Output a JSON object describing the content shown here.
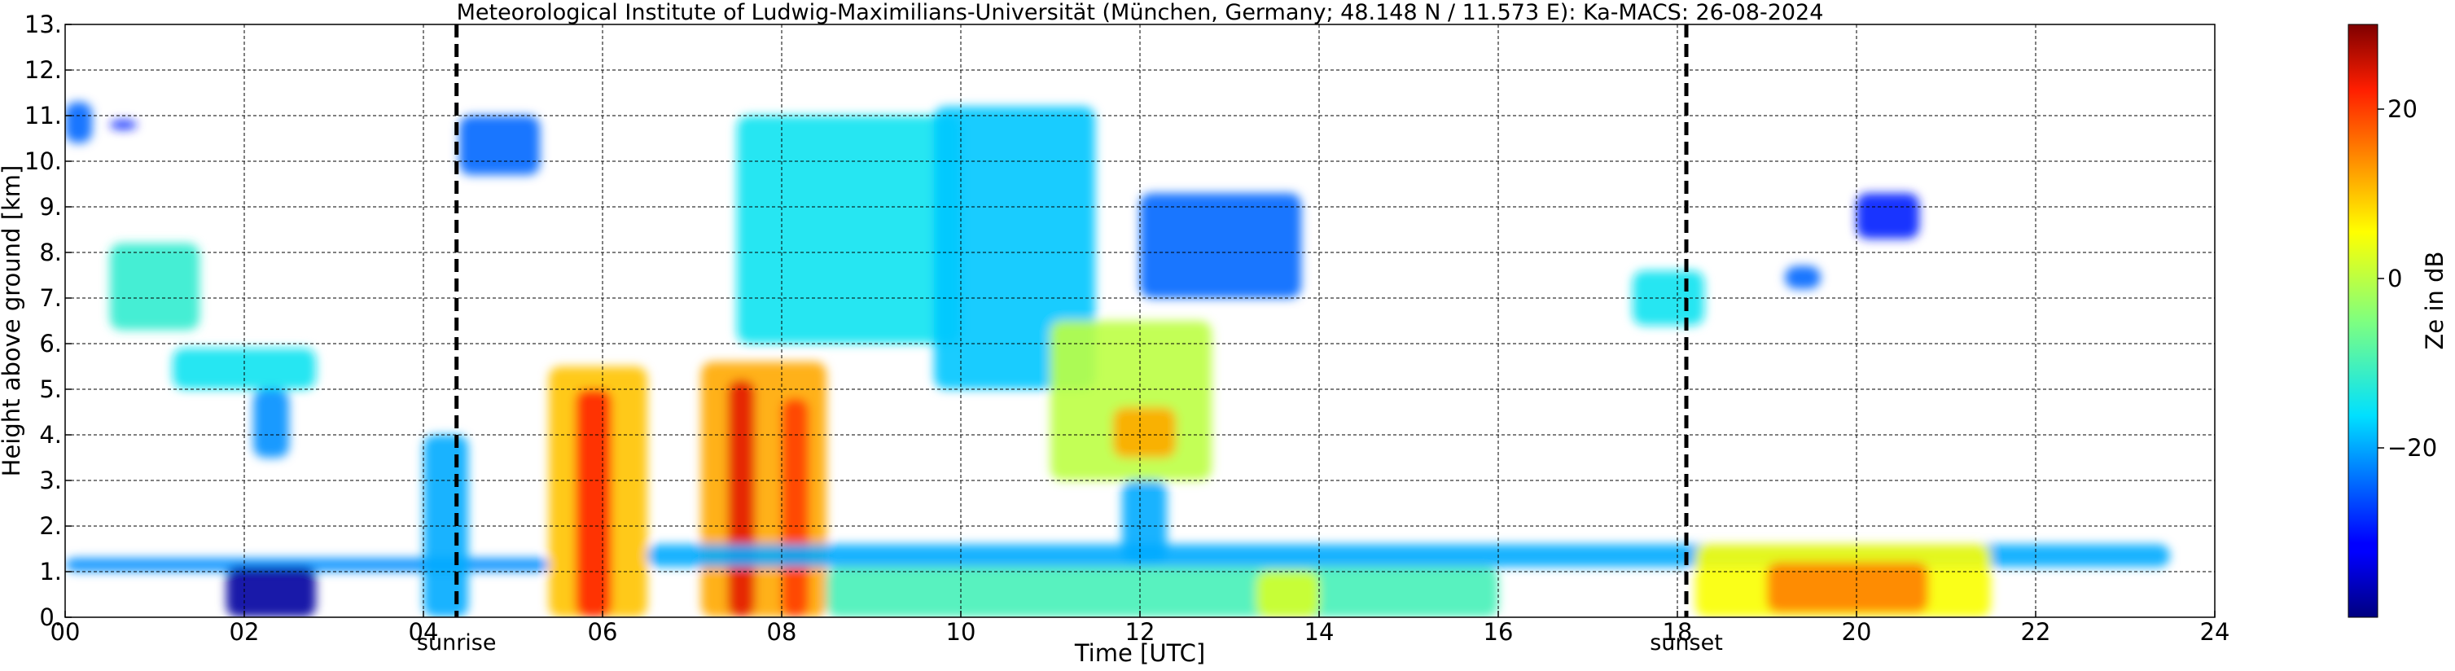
{
  "chart_data": {
    "type": "heatmap",
    "title": "Meteorological Institute of Ludwig-Maximilians-Universität (München, Germany; 48.148 N / 11.573 E):    Ka-MACS: 26-08-2024",
    "xlabel": "Time [UTC]",
    "ylabel": "Height above ground [km]",
    "xlim": [
      0,
      24
    ],
    "ylim": [
      0,
      13
    ],
    "x_ticks": [
      "00",
      "02",
      "04",
      "06",
      "08",
      "10",
      "12",
      "14",
      "16",
      "18",
      "20",
      "22",
      "24"
    ],
    "y_ticks": [
      "0.",
      "1.",
      "2.",
      "3.",
      "4.",
      "5.",
      "6.",
      "7.",
      "8.",
      "9.",
      "10.",
      "11.",
      "12.",
      "13."
    ],
    "grid": true,
    "events": [
      {
        "name": "sunrise",
        "time": 4.37
      },
      {
        "name": "sunset",
        "time": 18.1
      }
    ],
    "colorbar": {
      "label": "Ze in dB",
      "range": [
        -40,
        30
      ],
      "ticks": [
        "20",
        "0",
        "−20"
      ],
      "tick_values": [
        20,
        0,
        -20
      ],
      "colormap": "jet"
    },
    "echo_regions": [
      {
        "t0": 0.0,
        "t1": 0.3,
        "h0": 10.4,
        "h1": 11.3,
        "ze": -25
      },
      {
        "t0": 0.5,
        "t1": 0.8,
        "h0": 10.7,
        "h1": 10.9,
        "ze": -30
      },
      {
        "t0": 0.5,
        "t1": 1.5,
        "h0": 6.3,
        "h1": 8.2,
        "ze": -12
      },
      {
        "t0": 1.2,
        "t1": 2.8,
        "h0": 5.0,
        "h1": 5.9,
        "ze": -15
      },
      {
        "t0": 2.1,
        "t1": 2.5,
        "h0": 3.5,
        "h1": 5.0,
        "ze": -22
      },
      {
        "t0": 0.0,
        "t1": 5.4,
        "h0": 1.0,
        "h1": 1.3,
        "ze": -22
      },
      {
        "t0": 1.8,
        "t1": 2.8,
        "h0": 0.0,
        "h1": 1.1,
        "ze": -38
      },
      {
        "t0": 4.0,
        "t1": 4.5,
        "h0": 0.0,
        "h1": 4.0,
        "ze": -20
      },
      {
        "t0": 4.4,
        "t1": 5.3,
        "h0": 9.7,
        "h1": 11.0,
        "ze": -25
      },
      {
        "t0": 5.4,
        "t1": 6.5,
        "h0": 0.0,
        "h1": 5.5,
        "ze": 10
      },
      {
        "t0": 5.7,
        "t1": 6.1,
        "h0": 0.0,
        "h1": 5.0,
        "ze": 22
      },
      {
        "t0": 7.1,
        "t1": 8.5,
        "h0": 0.0,
        "h1": 5.6,
        "ze": 12
      },
      {
        "t0": 7.4,
        "t1": 7.7,
        "h0": 0.0,
        "h1": 5.2,
        "ze": 24
      },
      {
        "t0": 8.0,
        "t1": 8.3,
        "h0": 0.0,
        "h1": 4.8,
        "ze": 20
      },
      {
        "t0": 7.5,
        "t1": 10.0,
        "h0": 6.0,
        "h1": 11.0,
        "ze": -15
      },
      {
        "t0": 9.7,
        "t1": 11.5,
        "h0": 5.0,
        "h1": 11.2,
        "ze": -18
      },
      {
        "t0": 11.0,
        "t1": 12.8,
        "h0": 3.0,
        "h1": 6.5,
        "ze": 0
      },
      {
        "t0": 11.7,
        "t1": 12.4,
        "h0": 3.5,
        "h1": 4.6,
        "ze": 12
      },
      {
        "t0": 12.0,
        "t1": 13.8,
        "h0": 7.0,
        "h1": 9.3,
        "ze": -25
      },
      {
        "t0": 11.8,
        "t1": 12.3,
        "h0": 1.2,
        "h1": 3.0,
        "ze": -20
      },
      {
        "t0": 6.5,
        "t1": 23.5,
        "h0": 1.1,
        "h1": 1.6,
        "ze": -20
      },
      {
        "t0": 8.5,
        "t1": 16.0,
        "h0": 0.0,
        "h1": 1.1,
        "ze": -10
      },
      {
        "t0": 13.3,
        "t1": 14.0,
        "h0": 0.0,
        "h1": 1.0,
        "ze": 2
      },
      {
        "t0": 17.5,
        "t1": 18.3,
        "h0": 6.4,
        "h1": 7.6,
        "ze": -15
      },
      {
        "t0": 18.2,
        "t1": 21.5,
        "h0": 0.0,
        "h1": 1.6,
        "ze": 5
      },
      {
        "t0": 19.0,
        "t1": 20.8,
        "h0": 0.1,
        "h1": 1.2,
        "ze": 15
      },
      {
        "t0": 19.2,
        "t1": 19.6,
        "h0": 7.2,
        "h1": 7.7,
        "ze": -25
      },
      {
        "t0": 20.0,
        "t1": 20.7,
        "h0": 8.3,
        "h1": 9.3,
        "ze": -30
      }
    ]
  }
}
